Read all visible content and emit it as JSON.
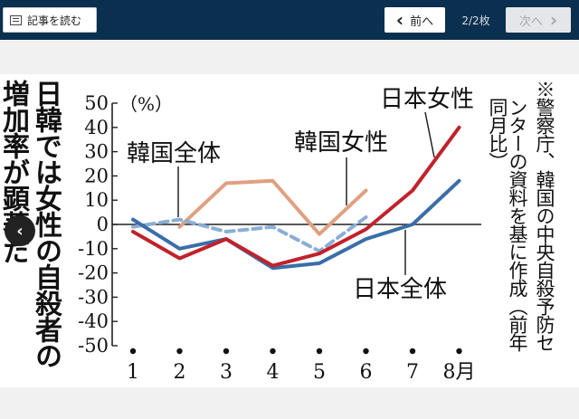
{
  "toolbar": {
    "read_article_label": "記事を読む",
    "prev_label": "前へ",
    "prev_arrow": "‹",
    "counter": "2/2枚",
    "next_label": "次へ",
    "next_arrow": "›"
  },
  "overlay": {
    "prev_glyph": "‹"
  },
  "headline": {
    "line1": "日韓では女性の自殺者の",
    "line2": "増加率が顕著だ"
  },
  "note": {
    "line1": "※警察庁、韓国の中央自殺予防セ",
    "line2": "ンターの資料を基に作成（前年",
    "line3": "同月比）"
  },
  "chart_data": {
    "type": "line",
    "ylabel": "（%）",
    "ylim": [
      -50,
      50
    ],
    "yticks": [
      "50",
      "40",
      "30",
      "20",
      "10",
      "0",
      "-10",
      "-20",
      "-30",
      "-40",
      "-50"
    ],
    "categories": [
      "1",
      "2",
      "3",
      "4",
      "5",
      "6",
      "7",
      "8月"
    ],
    "series": [
      {
        "name": "日本女性",
        "color": "#c0222b",
        "dashed": false,
        "values": [
          -3,
          -14,
          -6,
          -17,
          -12,
          -2,
          14,
          40
        ]
      },
      {
        "name": "日本全体",
        "color": "#3a6ea8",
        "dashed": false,
        "values": [
          2,
          -10,
          -6,
          -18,
          -16,
          -6,
          0,
          18
        ]
      },
      {
        "name": "韓国女性",
        "color": "#e0a080",
        "dashed": false,
        "values": [
          null,
          -1,
          17,
          18,
          -4,
          14,
          null,
          null
        ]
      },
      {
        "name": "韓国全体",
        "color": "#8aaed6",
        "dashed": true,
        "values": [
          -1,
          2,
          -3,
          -1,
          -11,
          3,
          null,
          null
        ]
      }
    ]
  }
}
